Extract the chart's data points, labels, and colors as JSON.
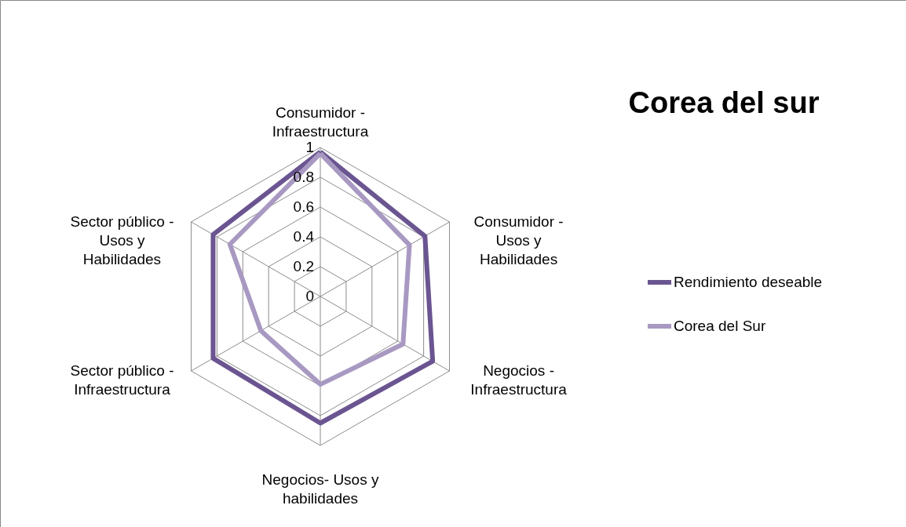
{
  "chart_data": {
    "type": "radar",
    "title": "Corea del sur",
    "categories": [
      "Consumidor - Infraestructura",
      "Consumidor - Usos y Habilidades",
      "Negocios - Infraestructura",
      "Negocios- Usos y habilidades",
      "Sector público - Infraestructura",
      "Sector público - Usos y Habilidades"
    ],
    "series": [
      {
        "name": "Rendimiento deseable",
        "color": "#6a5591",
        "values": [
          0.97,
          0.81,
          0.87,
          0.85,
          0.83,
          0.83
        ]
      },
      {
        "name": "Corea del Sur",
        "color": "#a899c2",
        "values": [
          0.96,
          0.69,
          0.64,
          0.59,
          0.46,
          0.7
        ]
      }
    ],
    "ylim": [
      0,
      1
    ],
    "yticks": [
      0,
      0.2,
      0.4,
      0.6,
      0.8,
      1
    ],
    "grid": true,
    "legend": "right"
  }
}
